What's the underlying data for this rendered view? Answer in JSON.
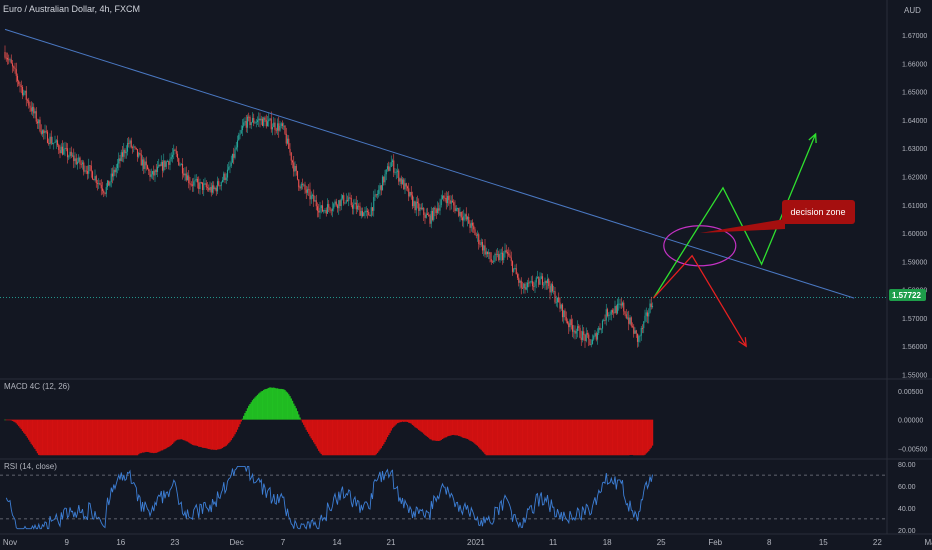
{
  "symbol_title": "Euro / Australian Dollar, 4h, FXCM",
  "currency": "AUD",
  "current_price": "1.57722",
  "annotation": "decision zone",
  "macd": {
    "label": "MACD 4C (12, 26)"
  },
  "rsi": {
    "label": "RSI (14, close)"
  },
  "colors": {
    "background": "#131722",
    "up_candle": "#26a69a",
    "down_candle": "#ef5350",
    "bull_bars": "#21c022",
    "bear_bars": "#d41111",
    "trendline": "#4a78c2",
    "rsi_line": "#3d7fd6",
    "green_path": "#2fe02f",
    "red_path": "#e62020",
    "ellipse": "#c432c4",
    "price_badge": "#1e9e4a",
    "callout": "#a50f0f"
  },
  "chart_data": [
    {
      "type": "line",
      "title": "Euro / Australian Dollar, 4h, FXCM",
      "ylim": [
        1.55,
        1.675
      ],
      "ticks": [
        "1.67000",
        "1.66000",
        "1.65000",
        "1.64000",
        "1.63000",
        "1.62000",
        "1.61000",
        "1.60000",
        "1.59000",
        "1.58000",
        "1.57000",
        "1.56000",
        "1.55000"
      ],
      "x_labels": [
        "Nov",
        "9",
        "16",
        "23",
        "Dec",
        "7",
        "14",
        "21",
        "2021",
        "11",
        "18",
        "25",
        "Feb",
        "8",
        "15",
        "22",
        "Mar"
      ],
      "price_path": [
        {
          "date": "2020-11-01",
          "price": 1.664
        },
        {
          "date": "2020-11-03",
          "price": 1.652
        },
        {
          "date": "2020-11-06",
          "price": 1.635
        },
        {
          "date": "2020-11-09",
          "price": 1.628
        },
        {
          "date": "2020-11-12",
          "price": 1.622
        },
        {
          "date": "2020-11-14",
          "price": 1.615
        },
        {
          "date": "2020-11-17",
          "price": 1.632
        },
        {
          "date": "2020-11-20",
          "price": 1.62
        },
        {
          "date": "2020-11-23",
          "price": 1.628
        },
        {
          "date": "2020-11-25",
          "price": 1.618
        },
        {
          "date": "2020-11-28",
          "price": 1.615
        },
        {
          "date": "2020-11-30",
          "price": 1.622
        },
        {
          "date": "2020-12-02",
          "price": 1.639
        },
        {
          "date": "2020-12-04",
          "price": 1.64
        },
        {
          "date": "2020-12-07",
          "price": 1.637
        },
        {
          "date": "2020-12-09",
          "price": 1.618
        },
        {
          "date": "2020-12-12",
          "price": 1.608
        },
        {
          "date": "2020-12-15",
          "price": 1.612
        },
        {
          "date": "2020-12-18",
          "price": 1.606
        },
        {
          "date": "2020-12-21",
          "price": 1.625
        },
        {
          "date": "2020-12-24",
          "price": 1.61
        },
        {
          "date": "2020-12-26",
          "price": 1.605
        },
        {
          "date": "2020-12-28",
          "price": 1.613
        },
        {
          "date": "2020-12-31",
          "price": 1.604
        },
        {
          "date": "2021-01-03",
          "price": 1.59
        },
        {
          "date": "2021-01-05",
          "price": 1.593
        },
        {
          "date": "2021-01-07",
          "price": 1.58
        },
        {
          "date": "2021-01-10",
          "price": 1.584
        },
        {
          "date": "2021-01-13",
          "price": 1.568
        },
        {
          "date": "2021-01-16",
          "price": 1.561
        },
        {
          "date": "2021-01-18",
          "price": 1.572
        },
        {
          "date": "2021-01-20",
          "price": 1.574
        },
        {
          "date": "2021-01-22",
          "price": 1.562
        },
        {
          "date": "2021-01-24",
          "price": 1.5772
        }
      ],
      "trendline": [
        {
          "date": "2020-11-01",
          "price": 1.672
        },
        {
          "date": "2021-02-19",
          "price": 1.577
        }
      ],
      "projection_green": [
        {
          "date": "2021-01-24",
          "price": 1.577
        },
        {
          "date": "2021-02-02",
          "price": 1.616
        },
        {
          "date": "2021-02-07",
          "price": 1.589
        },
        {
          "date": "2021-02-14",
          "price": 1.635
        }
      ],
      "projection_red": [
        {
          "date": "2021-01-24",
          "price": 1.577
        },
        {
          "date": "2021-01-29",
          "price": 1.592
        },
        {
          "date": "2021-02-05",
          "price": 1.56
        }
      ]
    },
    {
      "type": "bar",
      "title": "MACD 4C (12, 26)",
      "ylim": [
        -0.0065,
        0.0062
      ],
      "ticks": [
        "0.00500",
        "0.00000",
        "−0.00500"
      ]
    },
    {
      "type": "line",
      "title": "RSI (14, close)",
      "ylim": [
        18,
        82
      ],
      "ticks": [
        "80.00",
        "60.00",
        "40.00",
        "20.00"
      ],
      "bands": [
        70,
        30
      ]
    }
  ]
}
